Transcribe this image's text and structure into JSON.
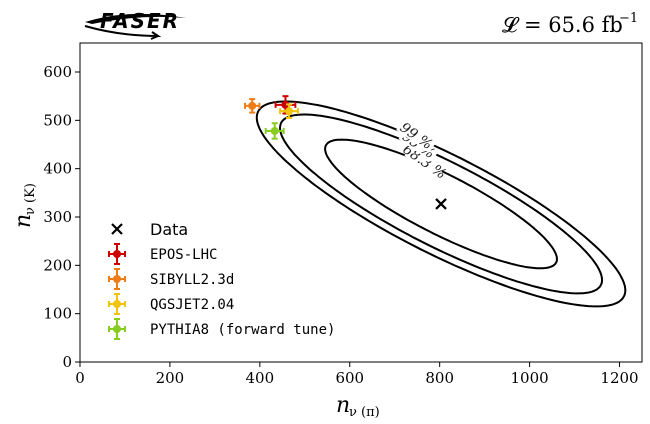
{
  "header": {
    "logo_text": "FASER",
    "luminosity_label": "𝓛 = 65.6 fb",
    "luminosity_exponent": "−1"
  },
  "chart_data": {
    "type": "scatter",
    "xlabel": "n",
    "xlabel_sub": "ν (π)",
    "ylabel": "n",
    "ylabel_sub": "ν (K)",
    "xlim": [
      0,
      1250
    ],
    "ylim": [
      0,
      660
    ],
    "xticks": [
      0,
      200,
      400,
      600,
      800,
      1000,
      1200
    ],
    "yticks": [
      0,
      100,
      200,
      300,
      400,
      500,
      600
    ],
    "grid": false,
    "legend_position": "lower-left",
    "data_point": {
      "name": "Data",
      "x": 803,
      "y": 327,
      "marker": "x",
      "color": "#000000"
    },
    "contours": [
      {
        "label": "68.3 %",
        "center": [
          803,
          327
        ],
        "a": 328,
        "b": 90,
        "angle_deg": -40
      },
      {
        "label": "95 %",
        "center": [
          803,
          327
        ],
        "a": 455,
        "b": 128,
        "angle_deg": -40
      },
      {
        "label": "99 %",
        "center": [
          803,
          327
        ],
        "a": 520,
        "b": 150,
        "angle_deg": -40
      }
    ],
    "series": [
      {
        "name": "EPOS-LHC",
        "x": 457,
        "y": 532,
        "xerr": 22,
        "yerr": 18,
        "color": "#cc0000",
        "marker": "circle"
      },
      {
        "name": "SIBYLL2.3d",
        "x": 383,
        "y": 530,
        "xerr": 16,
        "yerr": 14,
        "color": "#f07c18",
        "marker": "circle"
      },
      {
        "name": "QGSJET2.04",
        "x": 465,
        "y": 519,
        "xerr": 20,
        "yerr": 14,
        "color": "#f2c40f",
        "marker": "circle"
      },
      {
        "name": "PYTHIA8 (forward tune)",
        "x": 433,
        "y": 478,
        "xerr": 20,
        "yerr": 16,
        "color": "#88cc22",
        "marker": "circle"
      }
    ]
  }
}
